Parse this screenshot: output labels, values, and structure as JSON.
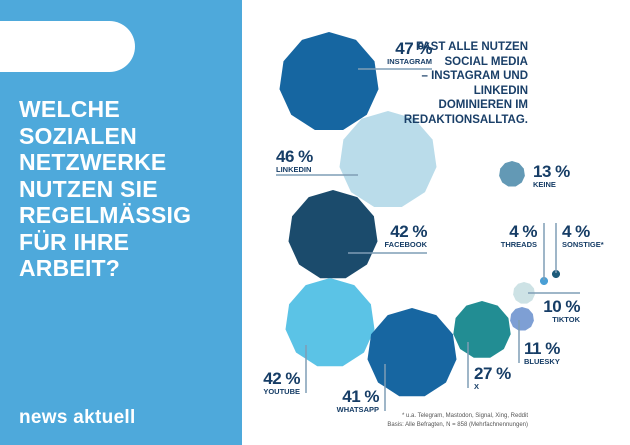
{
  "sidebar": {
    "title": "WELCHE\nSOZIALEN\nNETZWERKE\nNUTZEN SIE\nREGELMÄSSIG\nFÜR IHRE\nARBEIT?",
    "logo": "news aktuell",
    "background": "#4ea9db"
  },
  "headline": "FAST ALLE NUTZEN\nSOCIAL MEDIA\n– INSTAGRAM UND\nLINKEDIN\nDOMINIEREN IM\nREDAKTIONSALLTAG.",
  "footnote": "* u.a. Telegram, Mastodon, Signal, Xing, Reddit",
  "basis": "Basis: Alle Befragten, N = 858 (Mehrfachnennungen)",
  "chart_data": {
    "type": "bubble",
    "unit": "%",
    "items": [
      {
        "name": "INSTAGRAM",
        "value": 47,
        "label": "47 %",
        "color": "#1666a1"
      },
      {
        "name": "LINKEDIN",
        "value": 46,
        "label": "46 %",
        "color": "#badcea"
      },
      {
        "name": "FACEBOOK",
        "value": 42,
        "label": "42 %",
        "color": "#1b4b6c"
      },
      {
        "name": "YOUTUBE",
        "value": 42,
        "label": "42 %",
        "color": "#5bc3e6"
      },
      {
        "name": "WHATSAPP",
        "value": 41,
        "label": "41 %",
        "color": "#1766a1"
      },
      {
        "name": "X",
        "value": 27,
        "label": "27 %",
        "color": "#228d93"
      },
      {
        "name": "BLUESKY",
        "value": 11,
        "label": "11 %",
        "color": "#7e9fd4"
      },
      {
        "name": "TIKTOK",
        "value": 10,
        "label": "10 %",
        "color": "#cde2e5"
      },
      {
        "name": "THREADS",
        "value": 4,
        "label": "4 %",
        "color": "#4a9fd5"
      },
      {
        "name": "SONSTIGE*",
        "value": 4,
        "label": "4 %",
        "color": "#1d5b7a"
      },
      {
        "name": "KEINE",
        "value": 13,
        "label": "13 %",
        "color": "#6399b5"
      }
    ]
  }
}
